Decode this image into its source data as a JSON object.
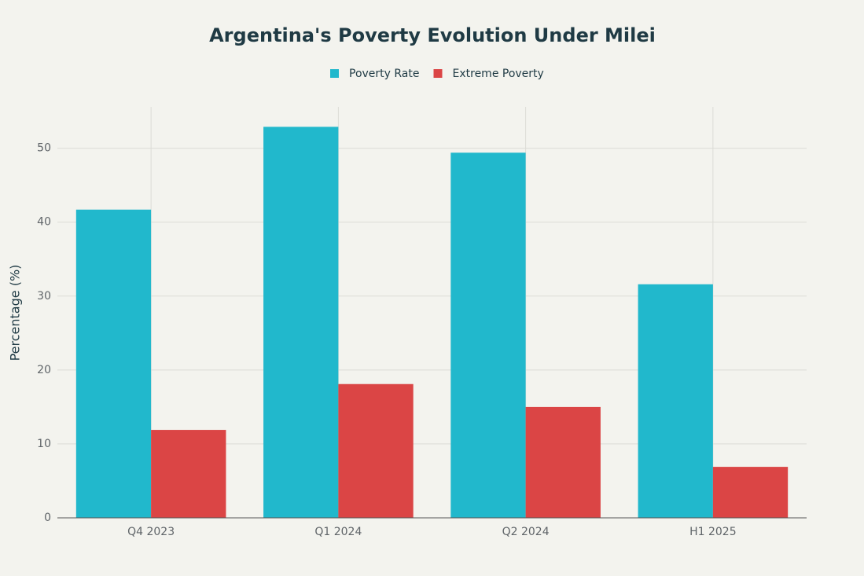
{
  "chart_data": {
    "type": "bar",
    "title": "Argentina's Poverty Evolution Under Milei",
    "y_label": "Percentage (%)",
    "categories": [
      "Q4 2023",
      "Q1 2024",
      "Q2 2024",
      "H1 2025"
    ],
    "series": [
      {
        "name": "Poverty Rate",
        "color": "#21b8cc",
        "values": [
          41.7,
          52.9,
          49.4,
          31.6
        ]
      },
      {
        "name": "Extreme Poverty",
        "color": "#db4545",
        "values": [
          11.9,
          18.1,
          15.0,
          6.9
        ]
      }
    ],
    "ylim": [
      0,
      55.6
    ],
    "yticks": [
      0,
      10,
      20,
      30,
      40,
      50
    ],
    "grid": true
  }
}
